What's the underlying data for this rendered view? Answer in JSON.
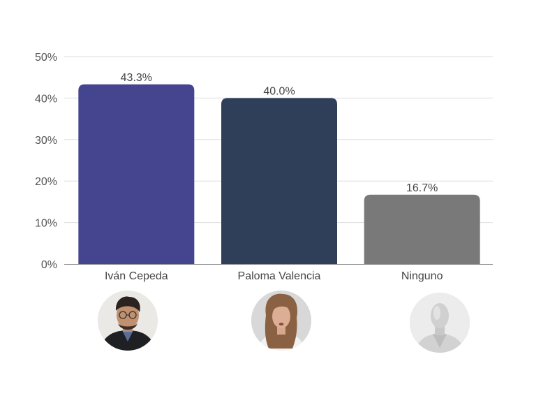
{
  "chart_data": {
    "type": "bar",
    "categories": [
      "Iván Cepeda",
      "Paloma Valencia",
      "Ninguno"
    ],
    "values": [
      43.3,
      40.0,
      16.7
    ],
    "value_labels": [
      "43.3%",
      "40.0%",
      "16.7%"
    ],
    "colors": [
      "#45458f",
      "#2f3f5a",
      "#797979"
    ],
    "ylim": [
      0,
      50
    ],
    "yticks": [
      0,
      10,
      20,
      30,
      40,
      50
    ],
    "ytick_labels": [
      "0%",
      "10%",
      "20%",
      "30%",
      "40%",
      "50%"
    ],
    "grid": true,
    "title": "",
    "xlabel": "",
    "ylabel": ""
  },
  "avatars": [
    {
      "name": "Iván Cepeda",
      "icon": "man-with-glasses-portrait"
    },
    {
      "name": "Paloma Valencia",
      "icon": "woman-portrait"
    },
    {
      "name": "Ninguno",
      "icon": "faceless-mannequin"
    }
  ]
}
